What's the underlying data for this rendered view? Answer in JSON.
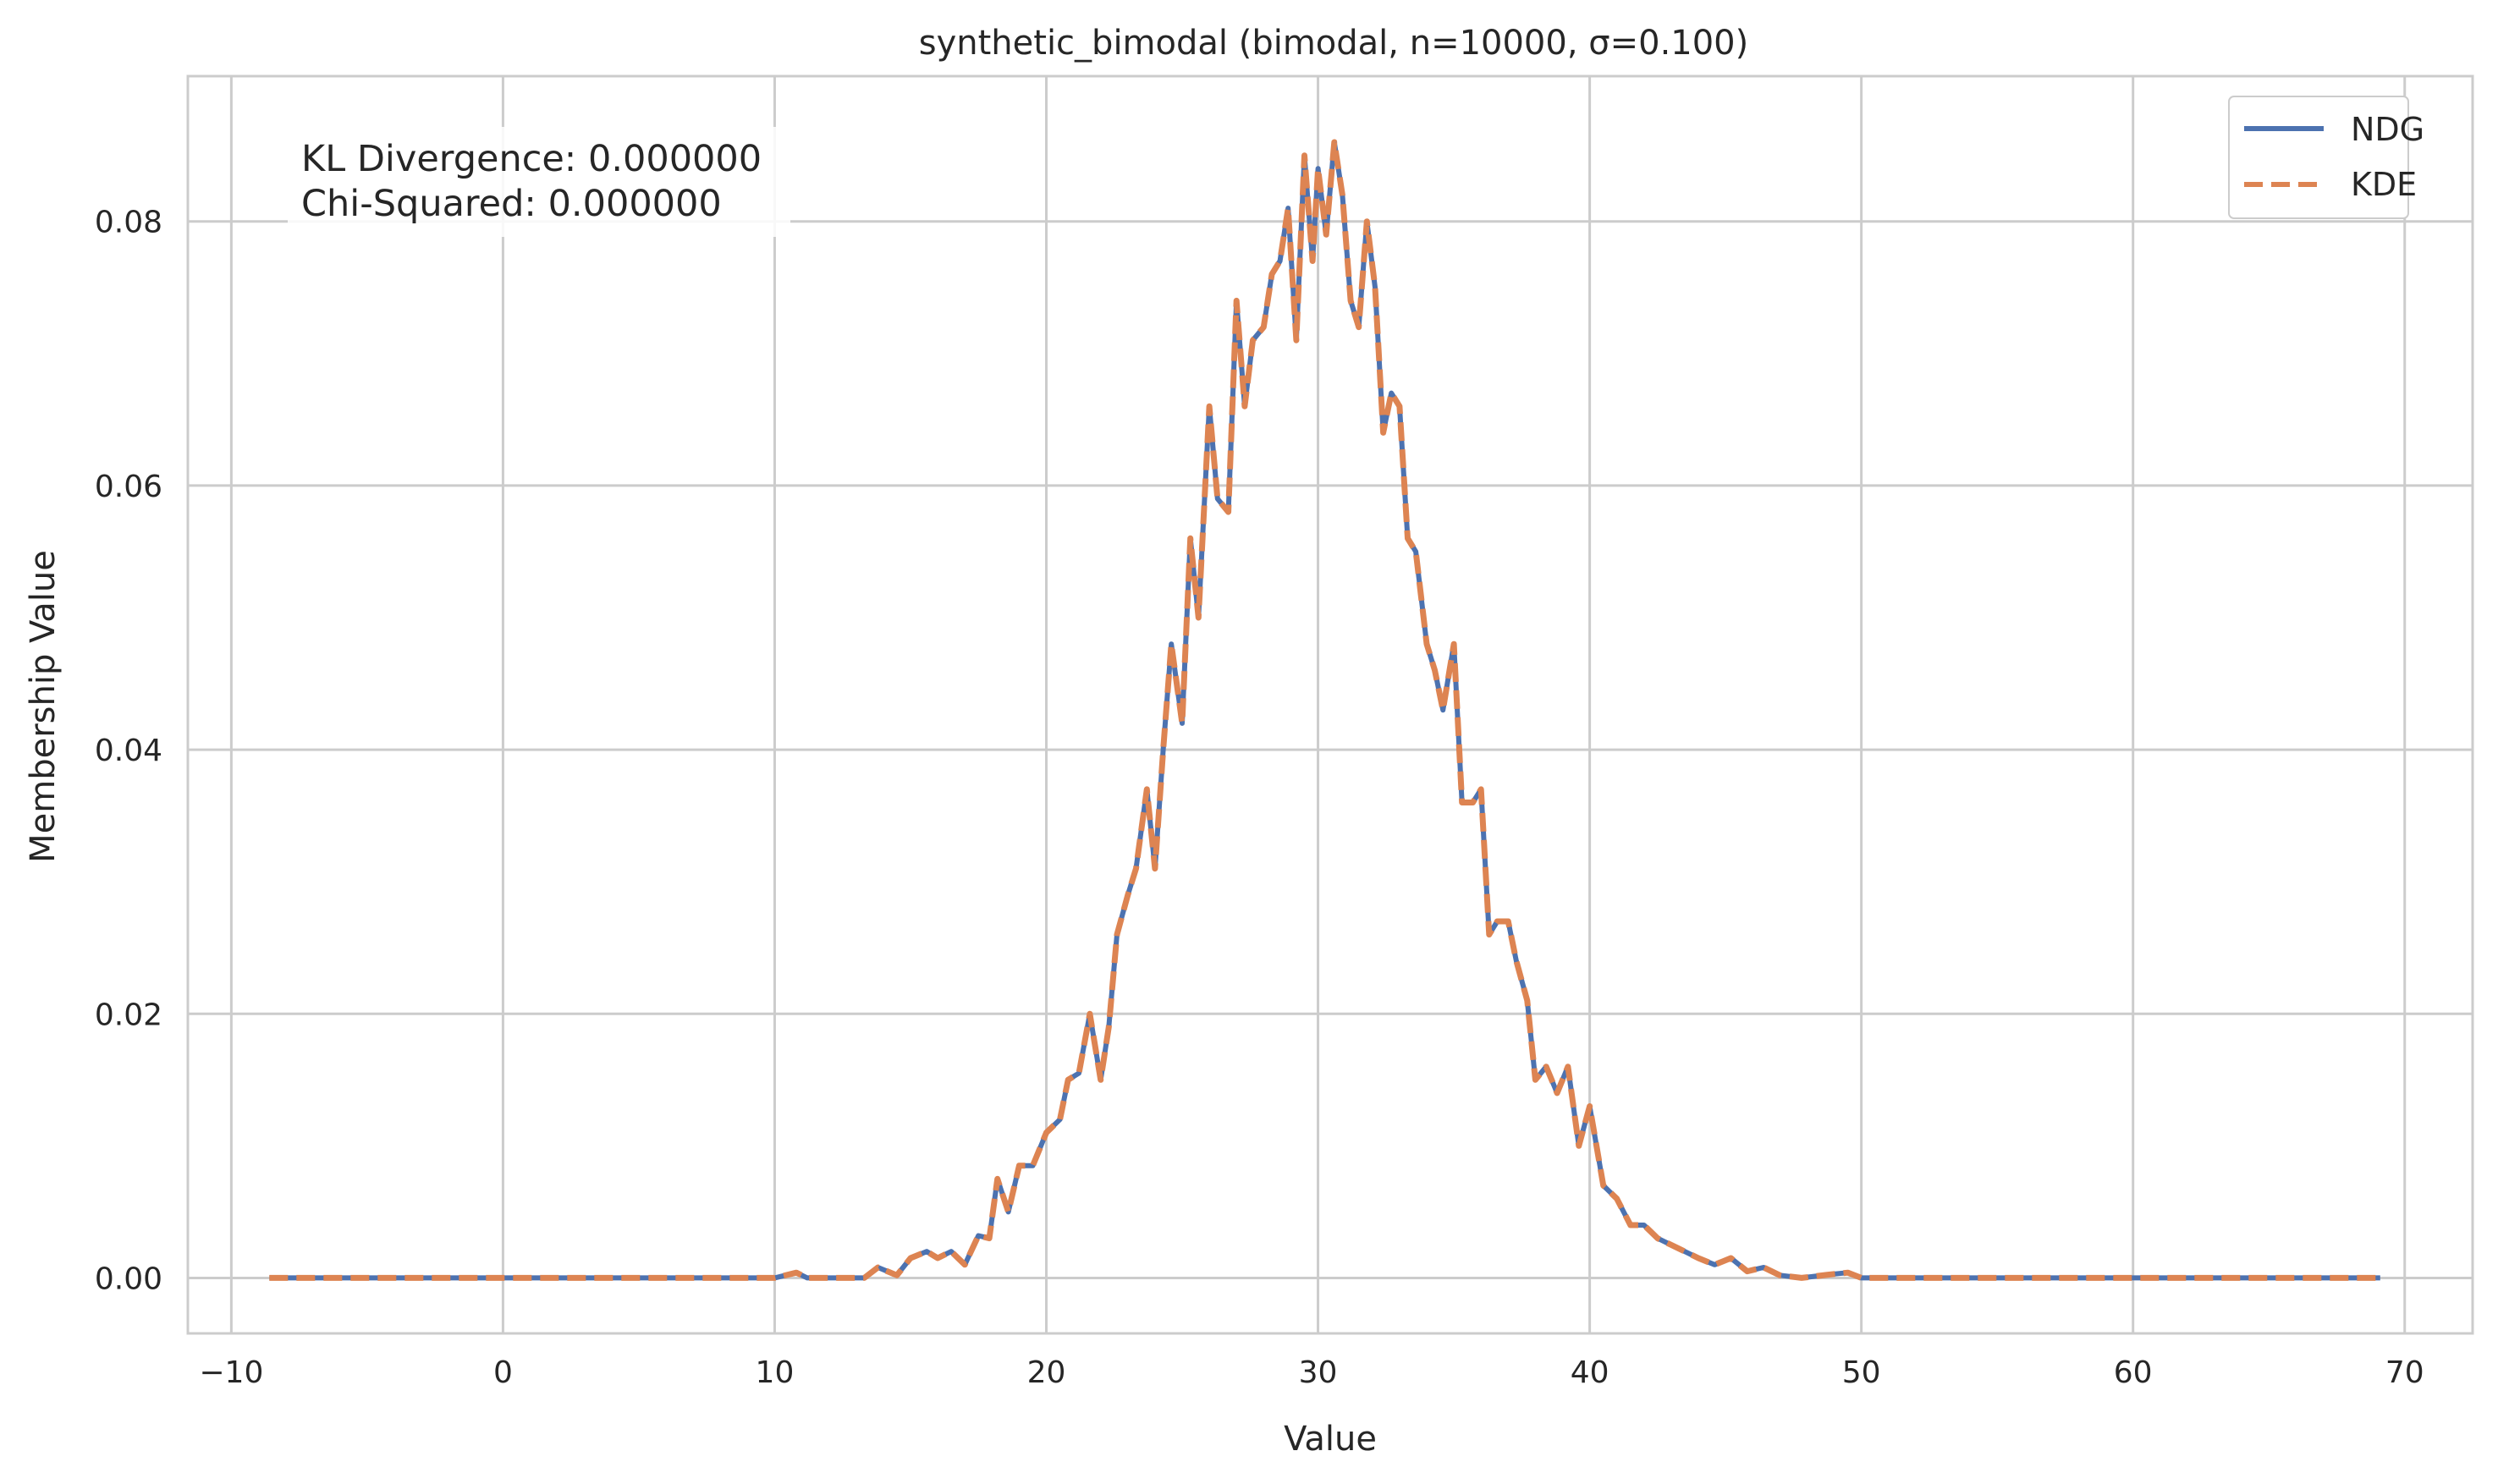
{
  "chart_data": {
    "type": "line",
    "title": "synthetic_bimodal (bimodal, n=10000, σ=0.100)",
    "xlabel": "Value",
    "ylabel": "Membership Value",
    "xlim": [
      -11.6,
      72.5
    ],
    "ylim": [
      -0.0042,
      0.091
    ],
    "xticks": [
      -10,
      0,
      10,
      20,
      30,
      40,
      50,
      60,
      70
    ],
    "xtick_labels": [
      "−10",
      "0",
      "10",
      "20",
      "30",
      "40",
      "50",
      "60",
      "70"
    ],
    "yticks": [
      0.0,
      0.02,
      0.04,
      0.06,
      0.08
    ],
    "ytick_labels": [
      "0.00",
      "0.02",
      "0.04",
      "0.06",
      "0.08"
    ],
    "grid": true,
    "legend_position": "top-right",
    "annotation": [
      "KL Divergence: 0.000000",
      "Chi-Squared: 0.000000"
    ],
    "x": [
      -8.6,
      10.0,
      10.8,
      11.2,
      12.0,
      13.3,
      13.8,
      14.5,
      15.0,
      15.6,
      16.0,
      16.5,
      17.0,
      17.5,
      17.9,
      18.2,
      18.6,
      19.0,
      19.5,
      20.0,
      20.5,
      20.8,
      21.2,
      21.6,
      22.0,
      22.3,
      22.6,
      23.0,
      23.3,
      23.7,
      24.0,
      24.3,
      24.6,
      25.0,
      25.3,
      25.6,
      26.0,
      26.3,
      26.7,
      27.0,
      27.3,
      27.6,
      28.0,
      28.3,
      28.6,
      28.9,
      29.2,
      29.5,
      29.8,
      30.0,
      30.3,
      30.6,
      30.9,
      31.2,
      31.5,
      31.8,
      32.1,
      32.4,
      32.7,
      33.0,
      33.3,
      33.6,
      34.0,
      34.3,
      34.6,
      35.0,
      35.3,
      35.7,
      36.0,
      36.3,
      36.6,
      37.0,
      37.3,
      37.7,
      38.0,
      38.4,
      38.8,
      39.2,
      39.6,
      40.0,
      40.5,
      41.0,
      41.5,
      42.0,
      42.5,
      43.0,
      43.5,
      44.0,
      44.6,
      45.2,
      45.8,
      46.4,
      47.0,
      47.8,
      49.0,
      49.5,
      50.0,
      69.1
    ],
    "series": [
      {
        "name": "NDG",
        "color": "#4c72b0",
        "style": "solid",
        "values": [
          0.0,
          0.0,
          0.0004,
          0.0,
          0.0,
          0.0,
          0.0008,
          0.0002,
          0.0015,
          0.002,
          0.0015,
          0.002,
          0.001,
          0.0032,
          0.003,
          0.0075,
          0.005,
          0.0085,
          0.0085,
          0.011,
          0.012,
          0.015,
          0.0155,
          0.02,
          0.015,
          0.019,
          0.026,
          0.029,
          0.031,
          0.037,
          0.031,
          0.04,
          0.048,
          0.042,
          0.056,
          0.05,
          0.066,
          0.059,
          0.058,
          0.074,
          0.066,
          0.071,
          0.072,
          0.076,
          0.077,
          0.081,
          0.071,
          0.085,
          0.077,
          0.084,
          0.079,
          0.086,
          0.082,
          0.074,
          0.072,
          0.08,
          0.075,
          0.064,
          0.067,
          0.066,
          0.056,
          0.055,
          0.048,
          0.046,
          0.043,
          0.048,
          0.036,
          0.036,
          0.037,
          0.026,
          0.027,
          0.027,
          0.024,
          0.021,
          0.015,
          0.016,
          0.014,
          0.016,
          0.01,
          0.013,
          0.007,
          0.006,
          0.004,
          0.004,
          0.003,
          0.0025,
          0.002,
          0.0015,
          0.001,
          0.0015,
          0.0005,
          0.0008,
          0.0002,
          0.0,
          0.0003,
          0.0004,
          0.0,
          0.0
        ]
      },
      {
        "name": "KDE",
        "color": "#dd8452",
        "style": "dashed",
        "values": [
          0.0,
          0.0,
          0.0004,
          0.0,
          0.0,
          0.0,
          0.0008,
          0.0002,
          0.0015,
          0.002,
          0.0015,
          0.002,
          0.001,
          0.0032,
          0.003,
          0.0075,
          0.005,
          0.0085,
          0.0085,
          0.011,
          0.012,
          0.015,
          0.0155,
          0.02,
          0.015,
          0.019,
          0.026,
          0.029,
          0.031,
          0.037,
          0.031,
          0.04,
          0.048,
          0.042,
          0.056,
          0.05,
          0.066,
          0.059,
          0.058,
          0.074,
          0.066,
          0.071,
          0.072,
          0.076,
          0.077,
          0.081,
          0.071,
          0.085,
          0.077,
          0.084,
          0.079,
          0.086,
          0.082,
          0.074,
          0.072,
          0.08,
          0.075,
          0.064,
          0.067,
          0.066,
          0.056,
          0.055,
          0.048,
          0.046,
          0.043,
          0.048,
          0.036,
          0.036,
          0.037,
          0.026,
          0.027,
          0.027,
          0.024,
          0.021,
          0.015,
          0.016,
          0.014,
          0.016,
          0.01,
          0.013,
          0.007,
          0.006,
          0.004,
          0.004,
          0.003,
          0.0025,
          0.002,
          0.0015,
          0.001,
          0.0015,
          0.0005,
          0.0008,
          0.0002,
          0.0,
          0.0003,
          0.0004,
          0.0,
          0.0
        ]
      }
    ]
  }
}
